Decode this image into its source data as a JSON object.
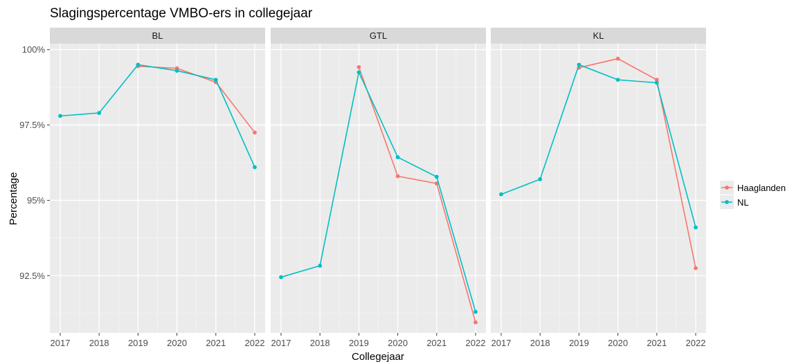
{
  "chart_data": {
    "type": "line",
    "title": "Slagingspercentage VMBO-ers in collegejaar",
    "xlabel": "Collegejaar",
    "ylabel": "Percentage",
    "x": [
      2017,
      2018,
      2019,
      2020,
      2021,
      2022
    ],
    "ylim": [
      90.6,
      100.2
    ],
    "yticks": [
      92.5,
      95,
      97.5,
      100
    ],
    "ytick_labels": [
      "92.5%",
      "95%",
      "97.5%",
      "100%"
    ],
    "grid": true,
    "legend_position": "right",
    "series_colors": {
      "Haaglanden": "#F8766D",
      "NL": "#00BFC4"
    },
    "legend": [
      "Haaglanden",
      "NL"
    ],
    "panels": [
      {
        "label": "BL",
        "series": [
          {
            "name": "Haaglanden",
            "values": [
              null,
              null,
              99.45,
              99.38,
              98.92,
              97.25
            ]
          },
          {
            "name": "NL",
            "values": [
              97.8,
              97.9,
              99.5,
              99.3,
              99.0,
              96.1
            ]
          }
        ]
      },
      {
        "label": "GTL",
        "series": [
          {
            "name": "Haaglanden",
            "values": [
              null,
              null,
              99.42,
              95.8,
              95.56,
              90.95
            ]
          },
          {
            "name": "NL",
            "values": [
              92.45,
              92.83,
              99.25,
              96.43,
              95.78,
              91.3
            ]
          }
        ]
      },
      {
        "label": "KL",
        "series": [
          {
            "name": "Haaglanden",
            "values": [
              null,
              null,
              99.4,
              99.7,
              99.0,
              92.75
            ]
          },
          {
            "name": "NL",
            "values": [
              95.2,
              95.7,
              99.5,
              99.0,
              98.9,
              94.1
            ]
          }
        ]
      }
    ]
  }
}
